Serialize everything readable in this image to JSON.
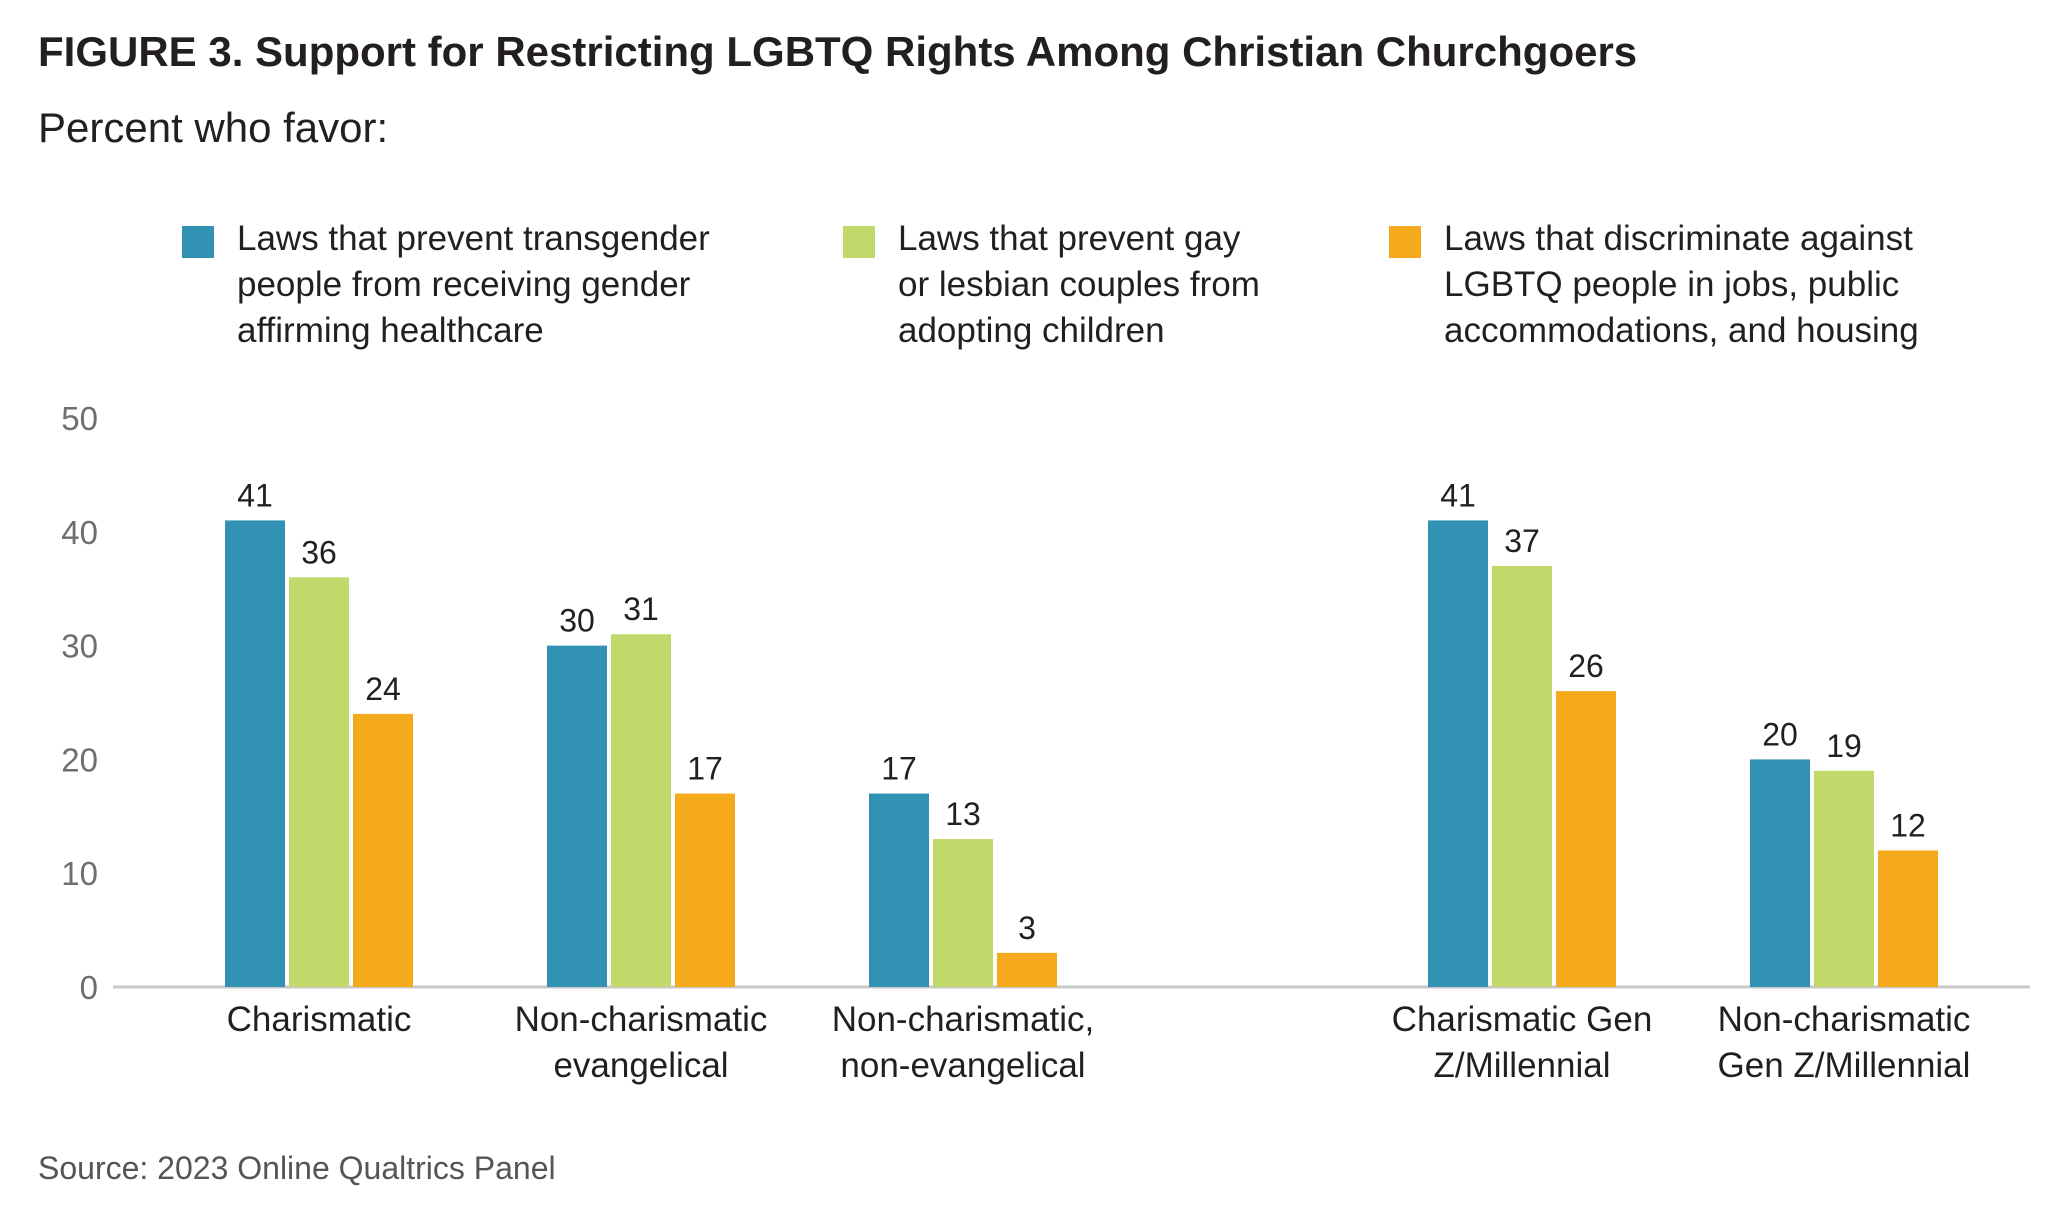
{
  "title": "FIGURE 3. Support for Restricting LGBTQ Rights Among Christian Churchgoers",
  "subtitle": "Percent who favor:",
  "source": "Source: 2023 Online Qualtrics Panel",
  "legend": [
    {
      "lines": [
        "Laws that prevent transgender",
        "people from receiving gender",
        "affirming healthcare"
      ],
      "color": "#3192b3"
    },
    {
      "lines": [
        "Laws that prevent gay",
        "or lesbian couples from",
        "adopting children"
      ],
      "color": "#c0d96a"
    },
    {
      "lines": [
        "Laws that discriminate against",
        "LGBTQ people in jobs, public",
        "accommodations, and housing"
      ],
      "color": "#f5a91c"
    }
  ],
  "chart_data": {
    "type": "bar",
    "categories": [
      [
        "Charismatic"
      ],
      [
        "Non-charismatic",
        "evangelical"
      ],
      [
        "Non-charismatic,",
        "non-evangelical"
      ],
      [
        "Charismatic Gen",
        "Z/Millennial"
      ],
      [
        "Non-charismatic",
        "Gen Z/Millennial"
      ]
    ],
    "series": [
      {
        "name": "Laws that prevent transgender people from receiving gender affirming healthcare",
        "color": "#3192b3",
        "values": [
          41,
          30,
          17,
          41,
          20
        ]
      },
      {
        "name": "Laws that prevent gay or lesbian couples from adopting children",
        "color": "#c0d96a",
        "values": [
          36,
          31,
          13,
          37,
          19
        ]
      },
      {
        "name": "Laws that discriminate against LGBTQ people in jobs, public accommodations, and housing",
        "color": "#f5a91c",
        "values": [
          24,
          17,
          3,
          26,
          12
        ]
      }
    ],
    "yticks": [
      "0",
      "10",
      "20",
      "30",
      "40",
      "50"
    ],
    "ylim": [
      0,
      50
    ],
    "grid": false,
    "legend_position": "top"
  }
}
